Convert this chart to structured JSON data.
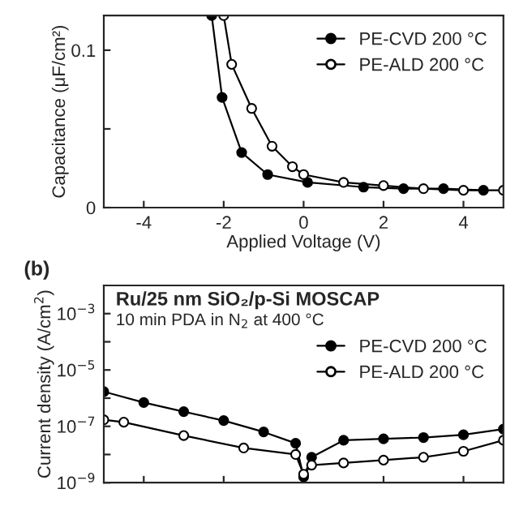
{
  "chart_data": [
    {
      "type": "line",
      "xlabel": "Applied Voltage (V)",
      "ylabel": "Capacitance (μF/cm²)",
      "xlim": [
        -5,
        5
      ],
      "xticks": [
        -4,
        -2,
        0,
        2,
        4
      ],
      "ylim": [
        0,
        0.122
      ],
      "yticks": [
        0,
        0.1,
        {
          "value": 0.05,
          "label": null
        }
      ],
      "marker": "circle",
      "legend": "top right",
      "series": [
        {
          "name": "PE-CVD 200 °C",
          "color": "#000000",
          "x": [
            -2.3,
            -2.04,
            -1.55,
            -0.9,
            0.1,
            1.5,
            2.5,
            3.5,
            4.5
          ],
          "values": [
            0.122,
            0.07,
            0.035,
            0.021,
            0.016,
            0.013,
            0.012,
            0.012,
            0.011
          ]
        },
        {
          "name": "PE-ALD 200 °C",
          "color": "#000000",
          "x": [
            -2.0,
            -1.8,
            -1.3,
            -0.79,
            -0.28,
            0,
            1,
            2,
            3,
            4,
            5
          ],
          "values": [
            0.122,
            0.091,
            0.063,
            0.039,
            0.026,
            0.021,
            0.016,
            0.014,
            0.012,
            0.011,
            0.011
          ]
        }
      ]
    },
    {
      "type": "line",
      "ylabel": "Current density (A/cm$^{2}$)",
      "log": "y",
      "xlim": [
        -5,
        5
      ],
      "ylim": [
        1e-09,
        0.01
      ],
      "tick_labels": "y",
      "marker": "circle",
      "legend": "right",
      "yticks": [
        {
          "value": 0.001,
          "label": "10$^{−3}$"
        },
        {
          "value": 0.0001,
          "label": null
        },
        {
          "value": 1e-05,
          "label": "10$^{−5}$"
        },
        {
          "value": 1e-06,
          "label": null
        },
        {
          "value": 1e-07,
          "label": "10$^{−7}$"
        },
        {
          "value": 1e-08,
          "label": null
        },
        {
          "value": 1e-09,
          "label": "10$^{−9}$"
        }
      ],
      "annotations": [
        "(b)",
        "Ru/25 nm SiO₂/p-Si MOSCAP",
        "10 min PDA in N$_{2}$ at 400 °C"
      ],
      "series": [
        {
          "name": "PE-CVD 200 °C",
          "color": "#000000",
          "x": [
            -5,
            -4,
            -3,
            -2,
            -1,
            -0.2,
            0,
            0.2,
            1,
            2,
            3,
            4,
            5
          ],
          "values": [
            1.7e-06,
            7e-07,
            3.3e-07,
            1.6e-07,
            6.3e-08,
            2.5e-08,
            1.6e-09,
            8e-09,
            3.2e-08,
            3.6e-08,
            4e-08,
            5e-08,
            8e-08
          ]
        },
        {
          "name": "PE-ALD 200 °C",
          "color": "#000000",
          "x": [
            -5,
            -4.5,
            -3,
            -1.5,
            -0.2,
            0,
            0.2,
            1,
            2,
            3,
            4,
            5
          ],
          "values": [
            1.7e-07,
            1.4e-07,
            4.7e-08,
            1.7e-08,
            1e-08,
            2e-09,
            4.2e-09,
            5e-09,
            6.3e-09,
            8e-09,
            1.3e-08,
            3.2e-08
          ]
        }
      ]
    }
  ]
}
